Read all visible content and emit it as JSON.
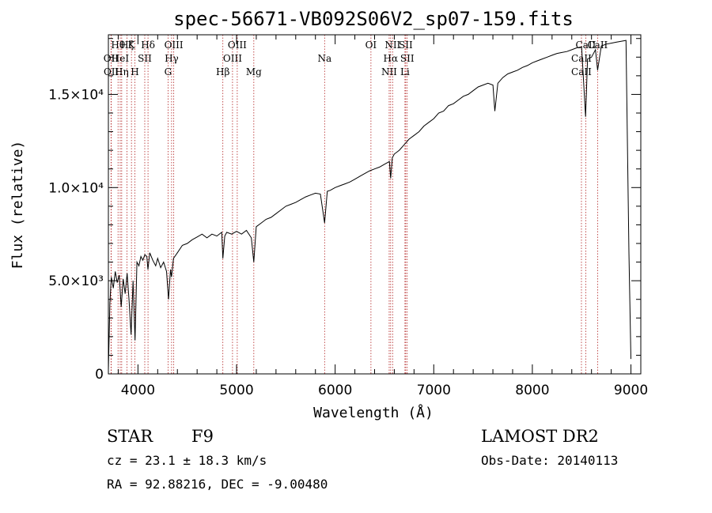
{
  "chart_data": {
    "type": "line",
    "title": "spec-56671-VB092S06V2_sp07-159.fits",
    "xlabel": "Wavelength (Å)",
    "ylabel": "Flux (relative)",
    "xlim": [
      3700,
      9100
    ],
    "ylim": [
      0,
      18200
    ],
    "x_ticks": [
      {
        "value": 4000,
        "label": "4000"
      },
      {
        "value": 5000,
        "label": "5000"
      },
      {
        "value": 6000,
        "label": "6000"
      },
      {
        "value": 7000,
        "label": "7000"
      },
      {
        "value": 8000,
        "label": "8000"
      },
      {
        "value": 9000,
        "label": "9000"
      }
    ],
    "y_ticks": [
      {
        "value": 0,
        "label": "0"
      },
      {
        "value": 5000,
        "label": "5.0×10³"
      },
      {
        "value": 10000,
        "label": "1.0×10⁴"
      },
      {
        "value": 15000,
        "label": "1.5×10⁴"
      }
    ],
    "series": [
      {
        "color": "#000000",
        "x": [
          3700,
          3715,
          3730,
          3750,
          3770,
          3790,
          3810,
          3830,
          3850,
          3870,
          3890,
          3910,
          3930,
          3950,
          3970,
          3990,
          4010,
          4030,
          4050,
          4070,
          4090,
          4101,
          4120,
          4150,
          4180,
          4200,
          4230,
          4260,
          4290,
          4310,
          4330,
          4340,
          4360,
          4400,
          4450,
          4500,
          4550,
          4600,
          4650,
          4700,
          4750,
          4800,
          4850,
          4861,
          4880,
          4900,
          4950,
          5000,
          5050,
          5100,
          5150,
          5175,
          5200,
          5250,
          5300,
          5350,
          5400,
          5450,
          5500,
          5550,
          5600,
          5650,
          5700,
          5750,
          5800,
          5850,
          5893,
          5920,
          5950,
          6000,
          6050,
          6100,
          6150,
          6200,
          6250,
          6300,
          6350,
          6400,
          6450,
          6500,
          6550,
          6563,
          6580,
          6600,
          6650,
          6700,
          6750,
          6800,
          6850,
          6900,
          6950,
          7000,
          7050,
          7100,
          7150,
          7200,
          7250,
          7300,
          7350,
          7400,
          7450,
          7500,
          7550,
          7600,
          7620,
          7650,
          7700,
          7750,
          7800,
          7850,
          7900,
          7950,
          8000,
          8050,
          8100,
          8150,
          8200,
          8250,
          8300,
          8350,
          8400,
          8450,
          8500,
          8540,
          8560,
          8600,
          8640,
          8662,
          8700,
          8750,
          8800,
          8850,
          8900,
          8950,
          8980,
          9000
        ],
        "values": [
          200,
          3800,
          5200,
          4600,
          5500,
          4900,
          5300,
          3600,
          5100,
          4300,
          5400,
          3900,
          2100,
          5000,
          1800,
          6000,
          5800,
          6300,
          6100,
          6400,
          6300,
          5600,
          6500,
          6100,
          5800,
          6200,
          5700,
          6000,
          5500,
          4000,
          5600,
          5200,
          6200,
          6500,
          6900,
          7000,
          7200,
          7350,
          7500,
          7300,
          7500,
          7400,
          7600,
          6200,
          7400,
          7600,
          7500,
          7650,
          7500,
          7700,
          7300,
          6000,
          7900,
          8100,
          8300,
          8400,
          8600,
          8800,
          9000,
          9100,
          9200,
          9350,
          9500,
          9600,
          9700,
          9650,
          8100,
          9800,
          9850,
          10000,
          10100,
          10200,
          10300,
          10450,
          10600,
          10750,
          10900,
          11000,
          11100,
          11250,
          11400,
          10500,
          11600,
          11800,
          12000,
          12300,
          12600,
          12800,
          13000,
          13300,
          13500,
          13700,
          14000,
          14100,
          14400,
          14500,
          14700,
          14900,
          15000,
          15200,
          15400,
          15500,
          15600,
          15500,
          14100,
          15600,
          15900,
          16100,
          16200,
          16300,
          16450,
          16550,
          16700,
          16800,
          16900,
          17000,
          17100,
          17200,
          17250,
          17300,
          17400,
          17500,
          17550,
          13800,
          16900,
          17000,
          17400,
          16300,
          17600,
          17700,
          17750,
          17800,
          17850,
          17900,
          6500,
          800
        ]
      }
    ],
    "spectral_lines": [
      {
        "label": "Hθ",
        "x": 3798,
        "row": 0
      },
      {
        "label": "OII",
        "x": 3727,
        "row": 1
      },
      {
        "label": "OII",
        "x": 3729,
        "row": 2
      },
      {
        "label": "Hζ",
        "x": 3889,
        "row": 0
      },
      {
        "label": "HeI",
        "x": 3820,
        "row": 1
      },
      {
        "label": "Hη",
        "x": 3835,
        "row": 2
      },
      {
        "label": "K",
        "x": 3934,
        "row": 0
      },
      {
        "label": "SII",
        "x": 4069,
        "row": 1
      },
      {
        "label": "H",
        "x": 3969,
        "row": 2
      },
      {
        "label": "Hδ",
        "x": 4102,
        "row": 0
      },
      {
        "label": "OIII",
        "x": 4363,
        "row": 0
      },
      {
        "label": "Hγ",
        "x": 4341,
        "row": 1
      },
      {
        "label": "G",
        "x": 4305,
        "row": 2
      },
      {
        "label": "Hβ",
        "x": 4861,
        "row": 2
      },
      {
        "label": "OIII",
        "x": 5007,
        "row": 0
      },
      {
        "label": "OIII",
        "x": 4959,
        "row": 1
      },
      {
        "label": "Mg",
        "x": 5175,
        "row": 2
      },
      {
        "label": "Na",
        "x": 5893,
        "row": 1
      },
      {
        "label": "OI",
        "x": 6363,
        "row": 0
      },
      {
        "label": "NII",
        "x": 6583,
        "row": 0
      },
      {
        "label": "SII",
        "x": 6716,
        "row": 0
      },
      {
        "label": "Hα",
        "x": 6563,
        "row": 1
      },
      {
        "label": "SII",
        "x": 6731,
        "row": 1
      },
      {
        "label": "NII",
        "x": 6548,
        "row": 2
      },
      {
        "label": "Li",
        "x": 6708,
        "row": 2
      },
      {
        "label": "CaII",
        "x": 8542,
        "row": 0
      },
      {
        "label": "CaII",
        "x": 8498,
        "row": 1
      },
      {
        "label": "CaII",
        "x": 8498,
        "row": 2
      },
      {
        "label": "CaII",
        "x": 8662,
        "row": 0
      }
    ]
  },
  "info": {
    "object_class": "STAR",
    "subclass": "F9",
    "survey": "LAMOST DR2",
    "redshift": "cz = 23.1 ± 18.3 km/s",
    "obs_date": "Obs-Date: 20140113",
    "coords": "RA =  92.88216, DEC =  -9.00480"
  },
  "colors": {
    "spectrum": "#000000",
    "line_markers": "#b22222",
    "axes": "#000000"
  }
}
